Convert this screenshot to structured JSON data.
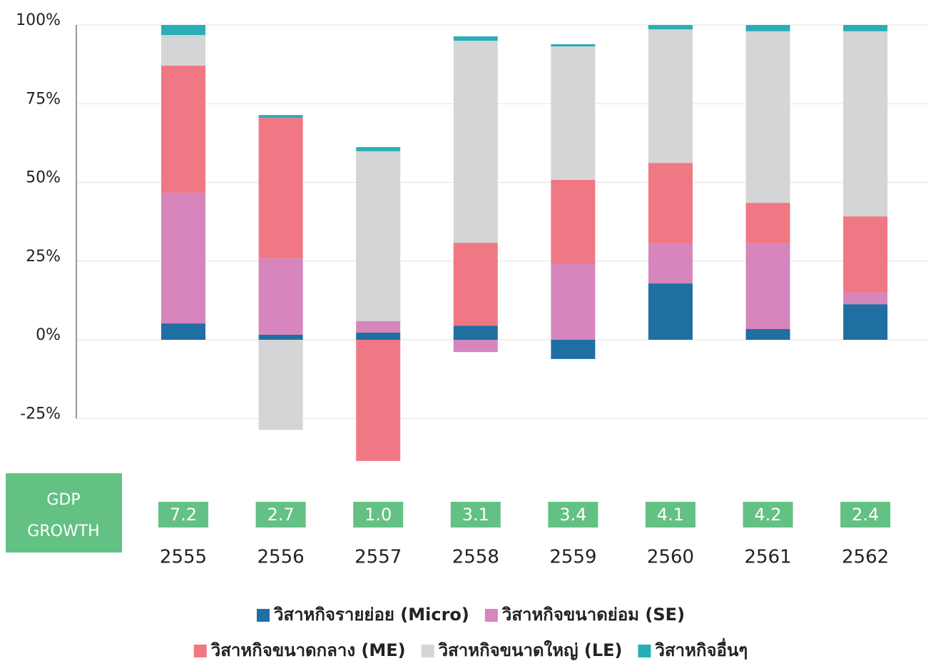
{
  "chart_data": {
    "type": "stacked_bar",
    "categories": [
      "2555",
      "2556",
      "2557",
      "2558",
      "2559",
      "2560",
      "2561",
      "2562"
    ],
    "series": [
      {
        "name": "วิสาหกิจรายย่อย (Micro)",
        "color": "#1f6fa3",
        "values": [
          5.2,
          1.6,
          2.3,
          4.5,
          -6.1,
          17.9,
          3.4,
          11.3
        ]
      },
      {
        "name": "วิสาหกิจขนาดย่อม (SE)",
        "color": "#d685bd",
        "values": [
          41.5,
          24.3,
          3.6,
          -3.9,
          24.0,
          12.7,
          27.2,
          3.7
        ]
      },
      {
        "name": "วิสาหกิจขนาดกลาง (ME)",
        "color": "#f07884",
        "values": [
          40.4,
          44.6,
          -38.5,
          26.3,
          26.8,
          25.6,
          12.9,
          24.2
        ]
      },
      {
        "name": "วิสาหกิจขนาดใหญ่ (LE)",
        "color": "#d3d5d6",
        "values": [
          9.7,
          -28.6,
          54.0,
          64.2,
          42.4,
          42.4,
          54.5,
          58.8
        ]
      },
      {
        "name": "วิสาหกิจอื่นๆ",
        "color": "#2aaeb5",
        "values": [
          3.2,
          0.9,
          1.3,
          1.4,
          0.7,
          1.4,
          2.0,
          2.0
        ]
      }
    ],
    "ylim": [
      -40,
      100
    ],
    "yticks": [
      {
        "value": 100,
        "label": "100%"
      },
      {
        "value": 75,
        "label": "75%"
      },
      {
        "value": 50,
        "label": "50%"
      },
      {
        "value": 25,
        "label": "25%"
      },
      {
        "value": 0,
        "label": "0%"
      },
      {
        "value": -25,
        "label": "-25%"
      }
    ],
    "grid": true,
    "gdp_growth": {
      "label": "GDP GROWTH",
      "values": [
        "7.2",
        "2.7",
        "1.0",
        "3.1",
        "3.4",
        "4.1",
        "4.2",
        "2.4"
      ]
    }
  }
}
